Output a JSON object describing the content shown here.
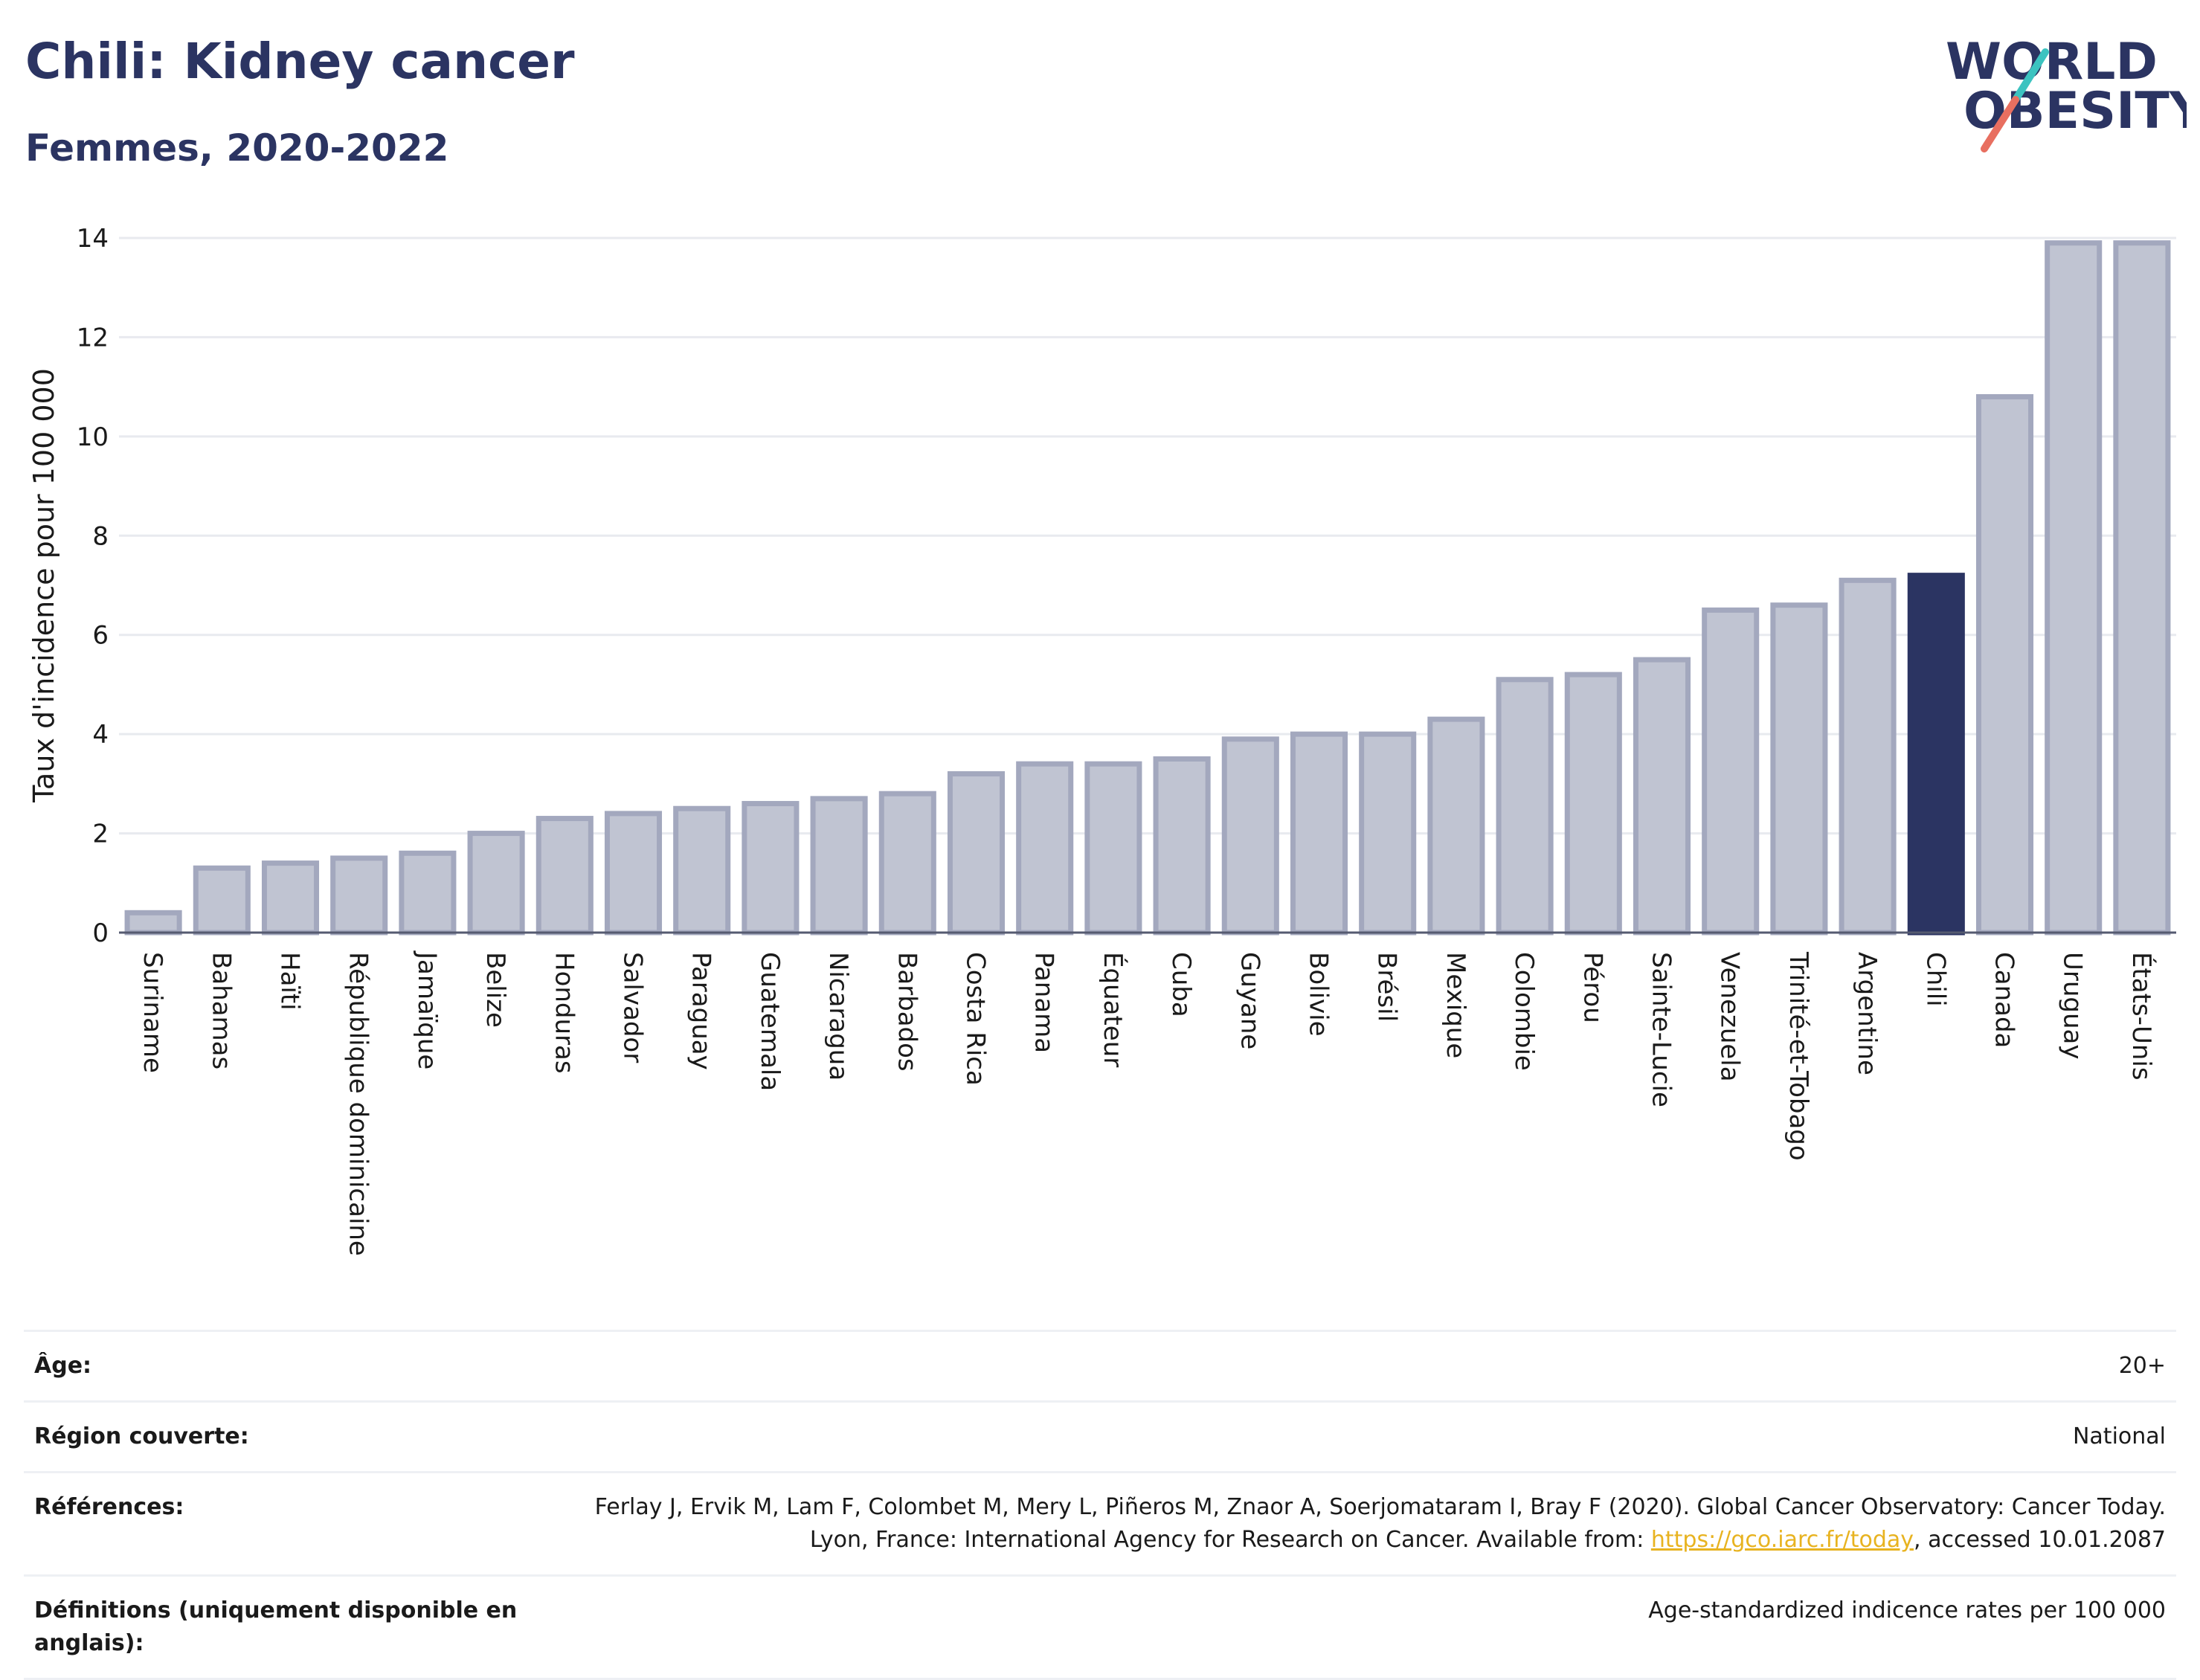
{
  "header": {
    "title": "Chili: Kidney cancer",
    "subtitle": "Femmes, 2020-2022"
  },
  "logo": {
    "line1": "WORLD",
    "line2": "OBESITY",
    "slash_colors": [
      "#3cc3c0",
      "#e86f60"
    ],
    "text_color": "#2b3462"
  },
  "chart_data": {
    "type": "bar",
    "ylabel": "Taux d'incidence pour 100 000",
    "ylim": [
      0,
      14
    ],
    "yticks": [
      0,
      2,
      4,
      6,
      8,
      10,
      12,
      14
    ],
    "grid": true,
    "highlight": "Chili",
    "highlight_color": "#2b3462",
    "bar_color": "#c0c4d2",
    "bar_edge_color": "#a3a8be",
    "categories": [
      "Suriname",
      "Bahamas",
      "Haïti",
      "République dominicaine",
      "Jamaïque",
      "Belize",
      "Honduras",
      "Salvador",
      "Paraguay",
      "Guatemala",
      "Nicaragua",
      "Barbados",
      "Costa Rica",
      "Panama",
      "Équateur",
      "Cuba",
      "Guyane",
      "Bolivie",
      "Brésil",
      "Mexique",
      "Colombie",
      "Pérou",
      "Sainte-Lucie",
      "Venezuela",
      "Trinité-et-Tobago",
      "Argentine",
      "Chili",
      "Canada",
      "Uruguay",
      "États-Unis"
    ],
    "values": [
      0.4,
      1.3,
      1.4,
      1.5,
      1.6,
      2.0,
      2.3,
      2.4,
      2.5,
      2.6,
      2.7,
      2.8,
      3.2,
      3.4,
      3.4,
      3.5,
      3.9,
      4.0,
      4.0,
      4.3,
      5.1,
      5.2,
      5.5,
      6.5,
      6.6,
      7.1,
      7.2,
      10.8,
      13.9,
      13.9
    ]
  },
  "meta": {
    "age_label": "Âge:",
    "age_value": "20+",
    "region_label": "Région couverte:",
    "region_value": "National",
    "ref_label": "Références:",
    "ref_text_1": "Ferlay J, Ervik M, Lam F, Colombet M, Mery L, Piñeros M, Znaor A, Soerjomataram I, Bray F (2020). Global Cancer Observatory: Cancer Today. Lyon, France: International Agency for Research on Cancer. Available from: ",
    "ref_link": "https://gco.iarc.fr/today",
    "ref_text_2": ", accessed 10.01.2087",
    "def_label": "Définitions (uniquement disponible en anglais):",
    "def_value": "Age-standardized indicence rates per 100 000"
  }
}
